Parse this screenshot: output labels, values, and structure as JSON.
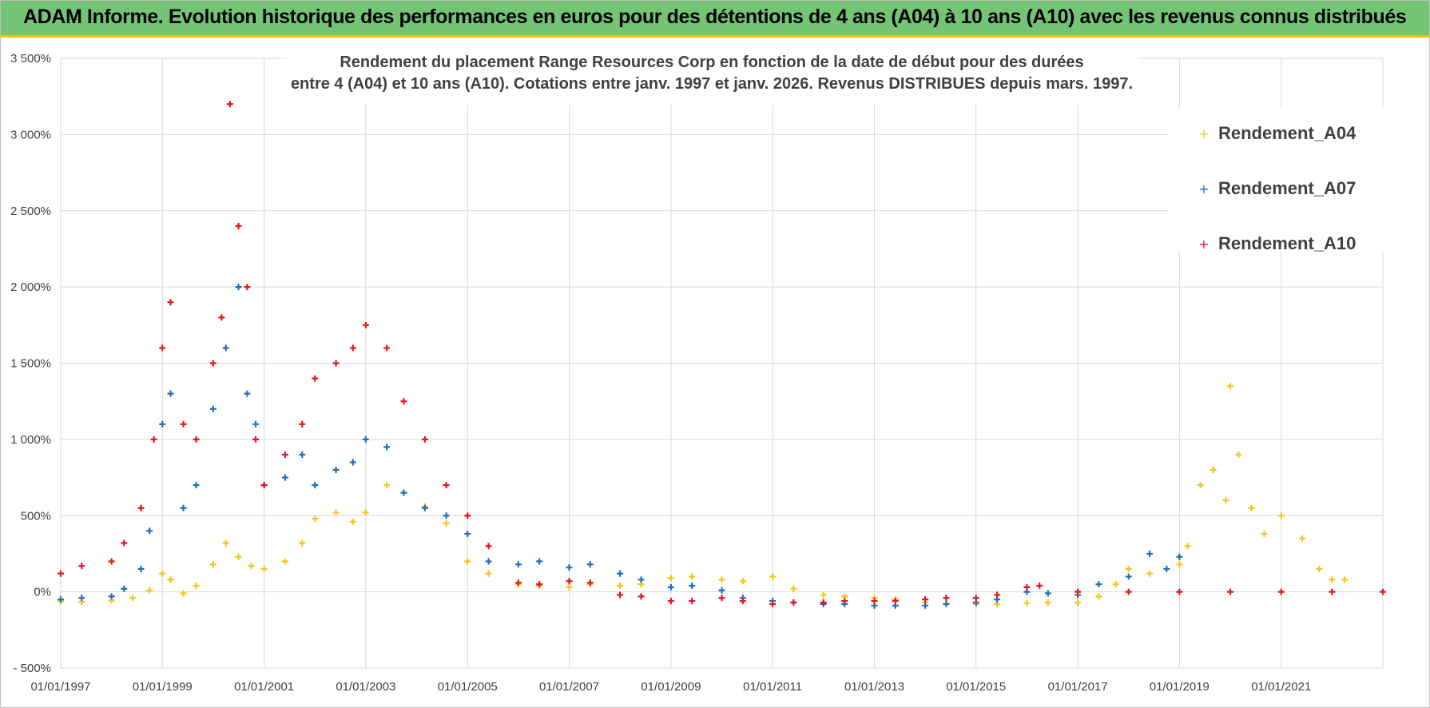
{
  "banner": {
    "title": "ADAM Informe. Evolution historique des performances en euros pour des détentions de 4 ans (A04) à 10 ans (A10) avec les revenus connus distribués"
  },
  "chart_data": {
    "type": "scatter",
    "title": "Rendement du placement Range Resources Corp en fonction de la date de début pour des durées",
    "subtitle": "entre 4 (A04) et 10 ans (A10).  Cotations entre janv. 1997 et janv. 2026.  Revenus DISTRIBUES depuis mars. 1997.",
    "xlabel": "",
    "ylabel": "",
    "xlim": [
      "1997-01-01",
      "2023-01-01"
    ],
    "ylim": [
      -500,
      3500
    ],
    "x_ticks": [
      "01/01/1997",
      "01/01/1999",
      "01/01/2001",
      "01/01/2003",
      "01/01/2005",
      "01/01/2007",
      "01/01/2009",
      "01/01/2011",
      "01/01/2013",
      "01/01/2015",
      "01/01/2017",
      "01/01/2019",
      "01/01/2021"
    ],
    "y_ticks": [
      "3 500%",
      "3 000%",
      "2 500%",
      "2 000%",
      "1 500%",
      "1 000%",
      "500%",
      "0%",
      "- 500%"
    ],
    "y_tick_values": [
      3500,
      3000,
      2500,
      2000,
      1500,
      1000,
      500,
      0,
      -500
    ],
    "grid": true,
    "legend_position": "top-right",
    "marker": "+",
    "series": [
      {
        "name": "Rendement_A04",
        "color": "#f5c518",
        "x": [
          "1997-01-01",
          "1997-06-01",
          "1998-01-01",
          "1998-06-01",
          "1998-10-01",
          "1999-01-01",
          "1999-03-01",
          "1999-06-01",
          "1999-09-01",
          "2000-01-01",
          "2000-04-01",
          "2000-07-01",
          "2000-10-01",
          "2001-01-01",
          "2001-06-01",
          "2001-10-01",
          "2002-01-01",
          "2002-06-01",
          "2002-10-01",
          "2003-01-01",
          "2003-06-01",
          "2003-10-01",
          "2004-03-01",
          "2004-08-01",
          "2005-01-01",
          "2005-06-01",
          "2006-01-01",
          "2006-06-01",
          "2007-01-01",
          "2007-06-01",
          "2008-01-01",
          "2008-06-01",
          "2009-01-01",
          "2009-06-01",
          "2010-01-01",
          "2010-06-01",
          "2011-01-01",
          "2011-06-01",
          "2012-01-01",
          "2012-06-01",
          "2013-01-01",
          "2013-06-01",
          "2014-01-01",
          "2014-06-01",
          "2015-01-01",
          "2015-06-01",
          "2016-01-01",
          "2016-06-01",
          "2017-01-01",
          "2017-06-01",
          "2017-10-01",
          "2018-01-01",
          "2018-06-01",
          "2019-01-01",
          "2019-03-01",
          "2019-06-01",
          "2019-09-01",
          "2019-12-01",
          "2020-01-01",
          "2020-03-01",
          "2020-06-01",
          "2020-09-01",
          "2021-01-01",
          "2021-06-01",
          "2021-10-01",
          "2022-01-01",
          "2022-04-01"
        ],
        "values": [
          -60,
          -65,
          -55,
          -40,
          10,
          120,
          80,
          -10,
          40,
          180,
          320,
          230,
          170,
          150,
          200,
          320,
          480,
          520,
          460,
          520,
          700,
          650,
          560,
          450,
          200,
          120,
          50,
          40,
          30,
          50,
          40,
          50,
          90,
          100,
          80,
          70,
          100,
          20,
          -20,
          -30,
          -40,
          -50,
          -70,
          -80,
          -80,
          -80,
          -75,
          -70,
          -70,
          -30,
          50,
          150,
          120,
          180,
          300,
          700,
          800,
          600,
          1350,
          900,
          550,
          380,
          500,
          350,
          150,
          80,
          80
        ]
      },
      {
        "name": "Rendement_A07",
        "color": "#1f6fbf",
        "x": [
          "1997-01-01",
          "1997-06-01",
          "1998-01-01",
          "1998-04-01",
          "1998-08-01",
          "1998-10-01",
          "1999-01-01",
          "1999-03-01",
          "1999-06-01",
          "1999-09-01",
          "2000-01-01",
          "2000-04-01",
          "2000-07-01",
          "2000-09-01",
          "2000-11-01",
          "2001-01-01",
          "2001-06-01",
          "2001-10-01",
          "2002-01-01",
          "2002-06-01",
          "2002-10-01",
          "2003-01-01",
          "2003-06-01",
          "2003-10-01",
          "2004-03-01",
          "2004-08-01",
          "2005-01-01",
          "2005-06-01",
          "2006-01-01",
          "2006-06-01",
          "2007-01-01",
          "2007-06-01",
          "2008-01-01",
          "2008-06-01",
          "2009-01-01",
          "2009-06-01",
          "2010-01-01",
          "2010-06-01",
          "2011-01-01",
          "2011-06-01",
          "2012-01-01",
          "2012-06-01",
          "2013-01-01",
          "2013-06-01",
          "2014-01-01",
          "2014-06-01",
          "2015-01-01",
          "2015-06-01",
          "2016-01-01",
          "2016-06-01",
          "2017-01-01",
          "2017-06-01",
          "2018-01-01",
          "2018-06-01",
          "2018-10-01",
          "2019-01-01"
        ],
        "values": [
          -50,
          -40,
          -30,
          20,
          150,
          400,
          1100,
          1300,
          550,
          700,
          1200,
          1600,
          2000,
          1300,
          1100,
          700,
          750,
          900,
          700,
          800,
          850,
          1000,
          950,
          650,
          550,
          500,
          380,
          200,
          180,
          200,
          160,
          180,
          120,
          80,
          30,
          40,
          10,
          -40,
          -60,
          -70,
          -80,
          -80,
          -90,
          -90,
          -90,
          -80,
          -70,
          -50,
          0,
          -10,
          -20,
          50,
          100,
          250,
          150,
          230
        ]
      },
      {
        "name": "Rendement_A10",
        "color": "#e8141e",
        "x": [
          "1997-01-01",
          "1997-06-01",
          "1998-01-01",
          "1998-04-01",
          "1998-08-01",
          "1998-11-01",
          "1999-01-01",
          "1999-03-01",
          "1999-06-01",
          "1999-09-01",
          "2000-01-01",
          "2000-03-01",
          "2000-05-01",
          "2000-07-01",
          "2000-09-01",
          "2000-11-01",
          "2001-01-01",
          "2001-06-01",
          "2001-10-01",
          "2002-01-01",
          "2002-06-01",
          "2002-10-01",
          "2003-01-01",
          "2003-06-01",
          "2003-10-01",
          "2004-03-01",
          "2004-08-01",
          "2005-01-01",
          "2005-06-01",
          "2006-01-01",
          "2006-06-01",
          "2007-01-01",
          "2007-06-01",
          "2008-01-01",
          "2008-06-01",
          "2009-01-01",
          "2009-06-01",
          "2010-01-01",
          "2010-06-01",
          "2011-01-01",
          "2011-06-01",
          "2012-01-01",
          "2012-06-01",
          "2013-01-01",
          "2013-06-01",
          "2014-01-01",
          "2014-06-01",
          "2015-01-01",
          "2015-06-01",
          "2016-01-01",
          "2016-04-01",
          "2017-01-01",
          "2018-01-01",
          "2019-01-01",
          "2020-01-01",
          "2021-01-01",
          "2022-01-01",
          "2023-01-01"
        ],
        "values": [
          120,
          170,
          200,
          320,
          550,
          1000,
          1600,
          1900,
          1100,
          1000,
          1500,
          1800,
          3200,
          2400,
          2000,
          1000,
          700,
          900,
          1100,
          1400,
          1500,
          1600,
          1750,
          1600,
          1250,
          1000,
          700,
          500,
          300,
          60,
          50,
          70,
          60,
          -20,
          -30,
          -60,
          -60,
          -40,
          -60,
          -80,
          -70,
          -70,
          -60,
          -60,
          -60,
          -50,
          -40,
          -40,
          -20,
          30,
          40,
          0,
          0,
          0,
          0,
          0,
          0,
          0
        ]
      }
    ]
  }
}
